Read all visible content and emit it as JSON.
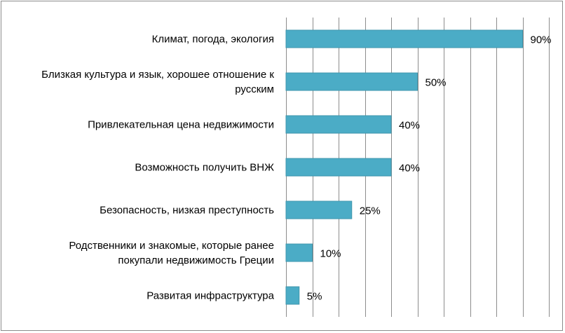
{
  "chart_data": {
    "type": "bar",
    "orientation": "horizontal",
    "categories": [
      [
        "Климат, погода, экология"
      ],
      [
        "Близкая культура и язык, хорошее отношение к",
        "русским"
      ],
      [
        "Привлекательная цена недвижимости"
      ],
      [
        "Возможность получить ВНЖ"
      ],
      [
        "Безопасность, низкая преступность"
      ],
      [
        "Родственники и знакомые, которые ранее",
        "покупали недвижимость Греции"
      ],
      [
        "Развитая инфраструктура"
      ]
    ],
    "values": [
      90,
      50,
      40,
      40,
      25,
      10,
      5
    ],
    "data_labels": [
      "90%",
      "50%",
      "40%",
      "40%",
      "25%",
      "10%",
      "5%"
    ],
    "xlim": [
      0,
      100
    ],
    "x_gridline_step": 10,
    "grid": true,
    "legend": "none",
    "title": "",
    "xlabel": "",
    "ylabel": "",
    "colors": {
      "bar": "#4bacc6",
      "bar_edge": "#3f96ad",
      "grid": "#8c8c8c",
      "frame": "#8c8c8c"
    }
  }
}
